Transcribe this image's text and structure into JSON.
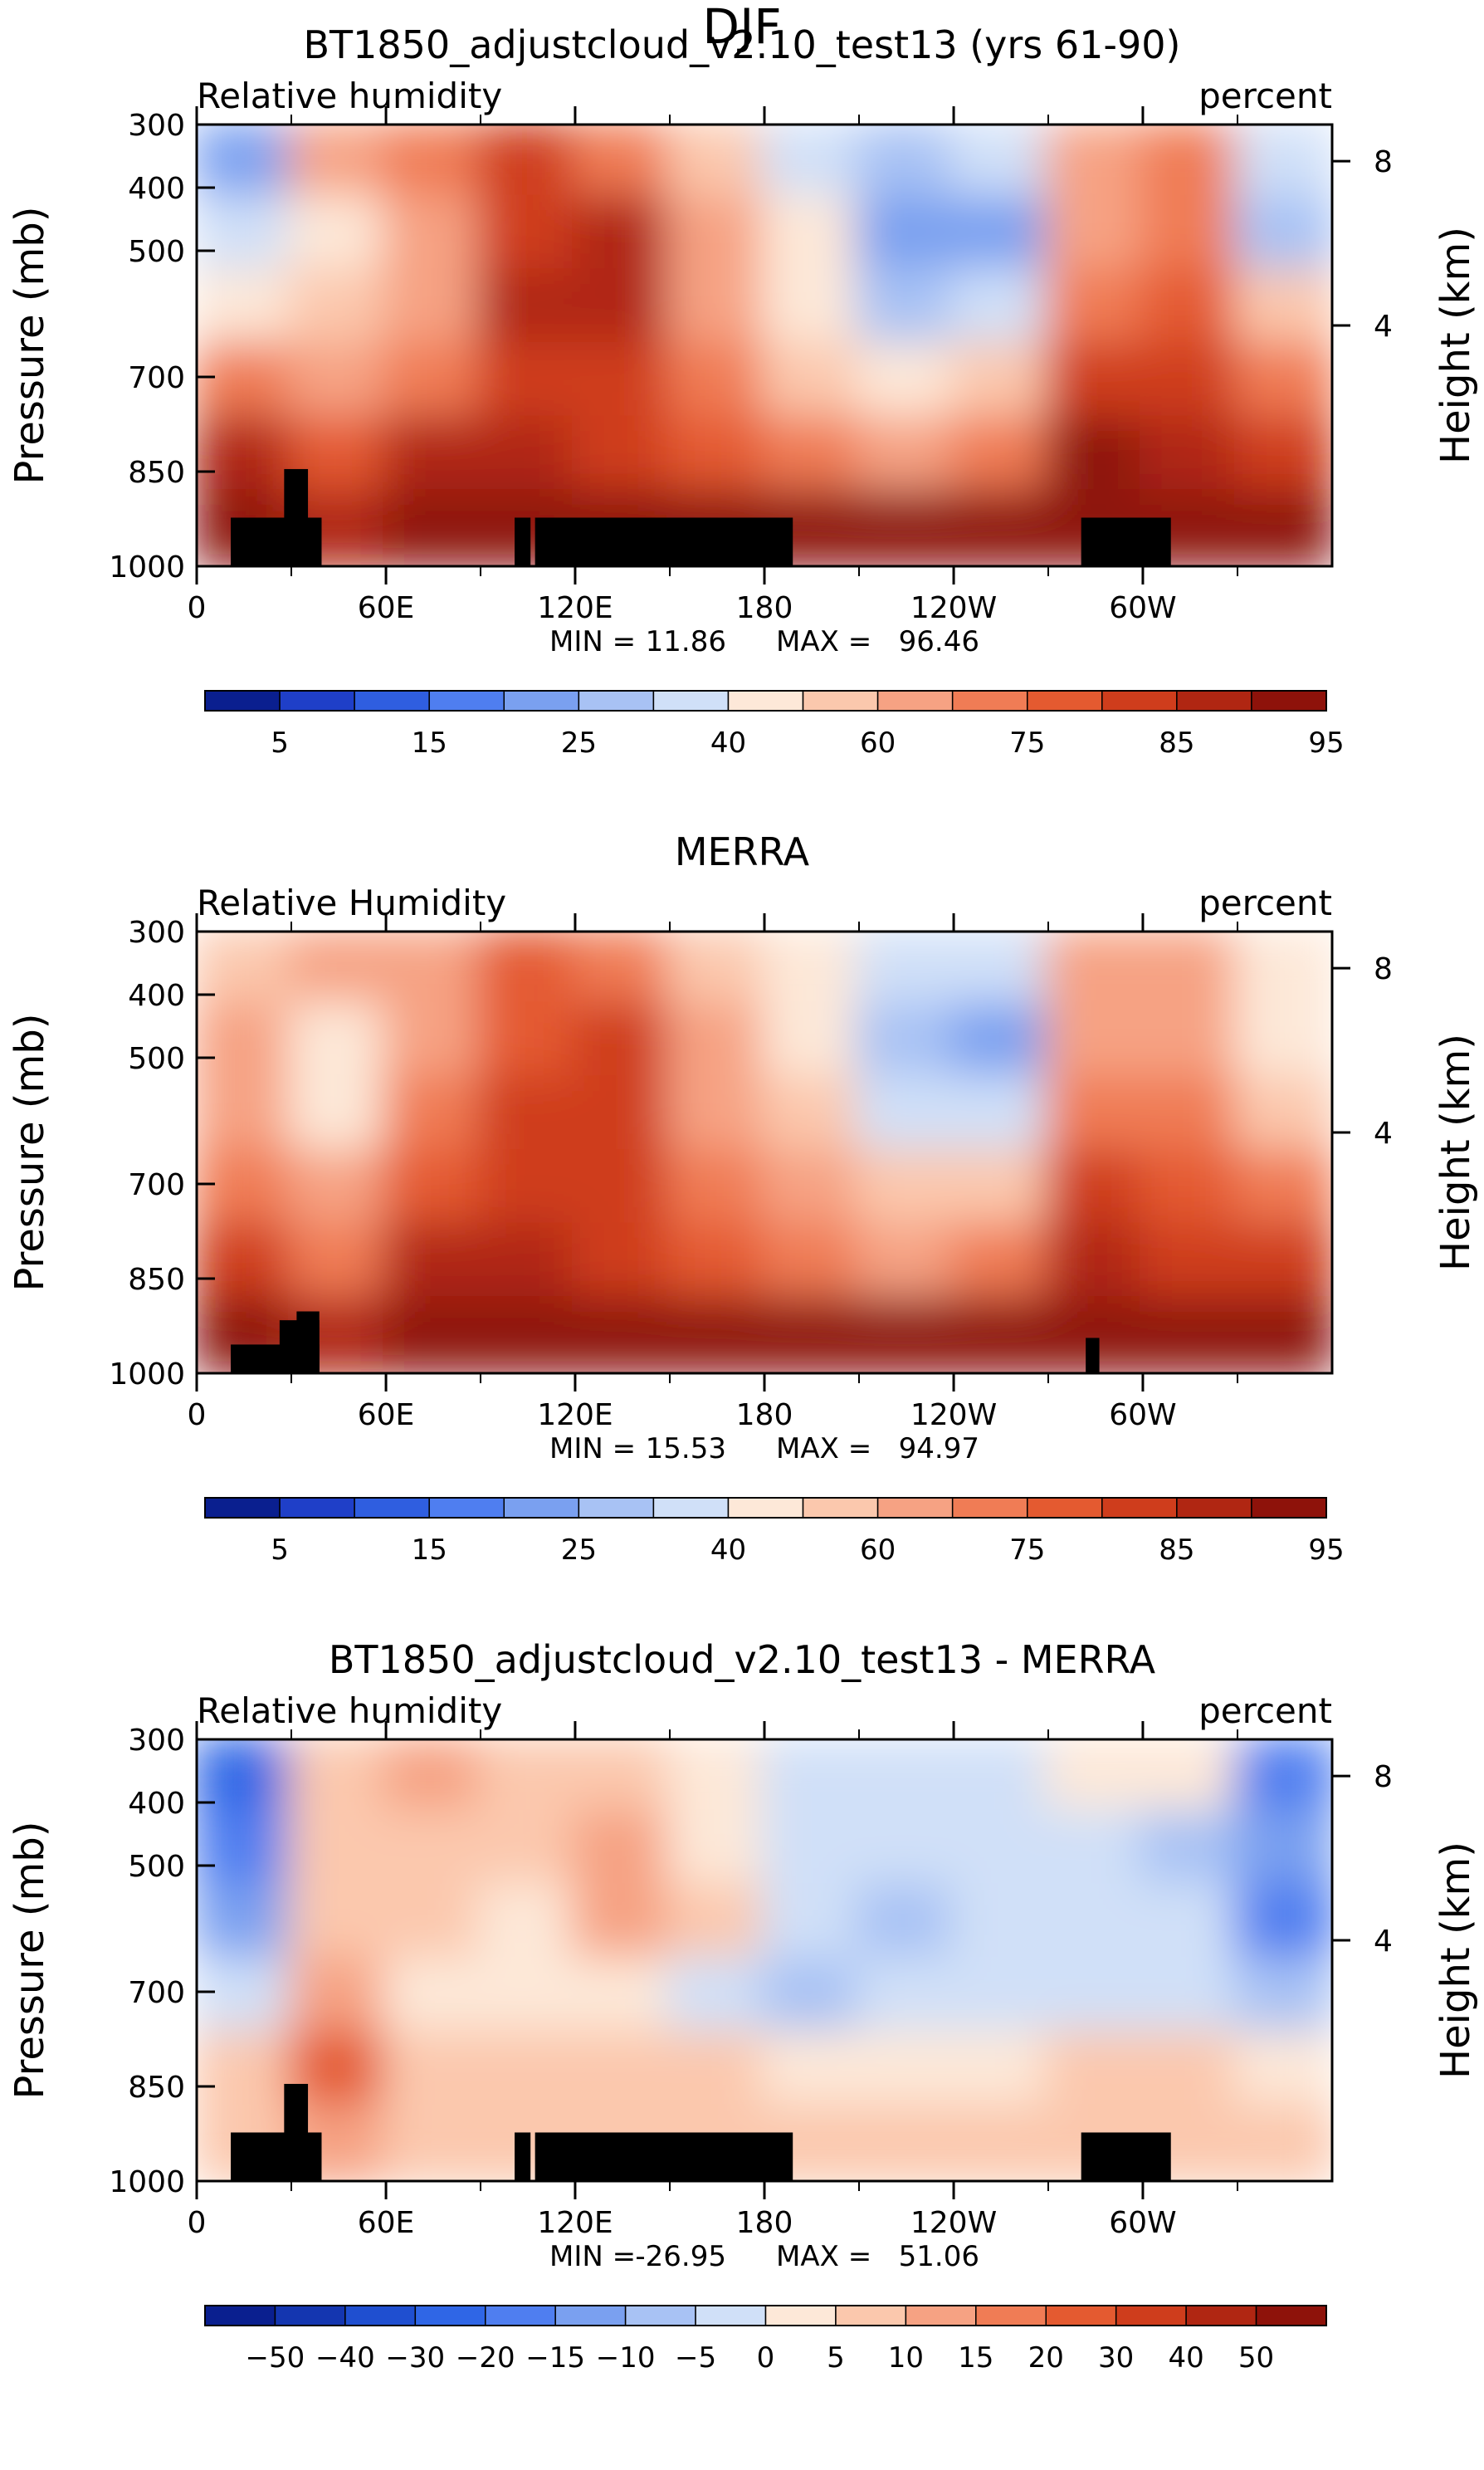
{
  "figure_title": "DJF",
  "chart_data": [
    {
      "type": "heatmap",
      "title": "BT1850_adjustcloud_v2.10_test13 (yrs 61-90)",
      "variable_label": "Relative humidity",
      "units_label": "percent",
      "ylabel": "Pressure (mb)",
      "y2label": "Height (km)",
      "yticks": [
        "300",
        "400",
        "500",
        "700",
        "850",
        "1000"
      ],
      "y2ticks": [
        "8",
        "4"
      ],
      "xticks": [
        "0",
        "60E",
        "120E",
        "180",
        "120W",
        "60W"
      ],
      "min_label": "MIN =",
      "min_value": "11.86",
      "max_label": "MAX =",
      "max_value": "96.46",
      "colorbar_labels": [
        "5",
        "15",
        "25",
        "40",
        "60",
        "75",
        "85",
        "95"
      ],
      "colorbar_colors": [
        "#0a1f8f",
        "#1f3fc8",
        "#2f5ee0",
        "#4f7ef0",
        "#7aa0f0",
        "#a8c2f4",
        "#d0e0f8",
        "#fde8d8",
        "#fbc8ad",
        "#f6a283",
        "#f07c55",
        "#e45a30",
        "#cf3d1c",
        "#b02612",
        "#8e120a"
      ],
      "x": [
        "0",
        "30E",
        "60E",
        "90E",
        "120E",
        "150E",
        "180",
        "150W",
        "120W",
        "90W",
        "60W",
        "30W"
      ],
      "y": [
        "300",
        "400",
        "500",
        "700",
        "850",
        "1000"
      ],
      "values": [
        [
          20,
          60,
          70,
          80,
          70,
          50,
          35,
          25,
          35,
          60,
          70,
          30
        ],
        [
          30,
          45,
          65,
          80,
          85,
          60,
          40,
          20,
          20,
          65,
          70,
          25
        ],
        [
          45,
          55,
          65,
          85,
          85,
          65,
          45,
          25,
          30,
          70,
          75,
          50
        ],
        [
          70,
          65,
          70,
          80,
          80,
          70,
          55,
          45,
          55,
          80,
          80,
          70
        ],
        [
          85,
          75,
          85,
          85,
          80,
          75,
          70,
          65,
          70,
          90,
          85,
          80
        ],
        [
          90,
          85,
          90,
          90,
          90,
          90,
          90,
          90,
          90,
          95,
          90,
          90
        ]
      ]
    },
    {
      "type": "heatmap",
      "title": "MERRA",
      "variable_label": "Relative Humidity",
      "units_label": "percent",
      "ylabel": "Pressure (mb)",
      "y2label": "Height (km)",
      "yticks": [
        "300",
        "400",
        "500",
        "700",
        "850",
        "1000"
      ],
      "y2ticks": [
        "8",
        "4"
      ],
      "xticks": [
        "0",
        "60E",
        "120E",
        "180",
        "120W",
        "60W"
      ],
      "min_label": "MIN =",
      "min_value": "15.53",
      "max_label": "MAX =",
      "max_value": "94.97",
      "colorbar_labels": [
        "5",
        "15",
        "25",
        "40",
        "60",
        "75",
        "85",
        "95"
      ],
      "colorbar_colors": [
        "#0a1f8f",
        "#1f3fc8",
        "#2f5ee0",
        "#4f7ef0",
        "#7aa0f0",
        "#a8c2f4",
        "#d0e0f8",
        "#fde8d8",
        "#fbc8ad",
        "#f6a283",
        "#f07c55",
        "#e45a30",
        "#cf3d1c",
        "#b02612",
        "#8e120a"
      ],
      "x": [
        "0",
        "30E",
        "60E",
        "90E",
        "120E",
        "150E",
        "180",
        "150W",
        "120W",
        "90W",
        "60W",
        "30W"
      ],
      "y": [
        "300",
        "400",
        "500",
        "700",
        "850",
        "1000"
      ],
      "values": [
        [
          55,
          60,
          65,
          75,
          70,
          55,
          40,
          30,
          35,
          60,
          60,
          45
        ],
        [
          60,
          40,
          60,
          75,
          80,
          60,
          45,
          25,
          20,
          60,
          65,
          40
        ],
        [
          65,
          45,
          70,
          80,
          80,
          65,
          50,
          30,
          30,
          70,
          70,
          55
        ],
        [
          70,
          60,
          75,
          80,
          80,
          70,
          60,
          50,
          55,
          80,
          75,
          70
        ],
        [
          80,
          70,
          85,
          85,
          80,
          75,
          70,
          65,
          70,
          85,
          80,
          80
        ],
        [
          90,
          85,
          90,
          90,
          90,
          90,
          90,
          90,
          90,
          90,
          90,
          90
        ]
      ]
    },
    {
      "type": "heatmap",
      "title": "BT1850_adjustcloud_v2.10_test13 - MERRA",
      "variable_label": "Relative humidity",
      "units_label": "percent",
      "ylabel": "Pressure (mb)",
      "y2label": "Height (km)",
      "yticks": [
        "300",
        "400",
        "500",
        "700",
        "850",
        "1000"
      ],
      "y2ticks": [
        "8",
        "4"
      ],
      "xticks": [
        "0",
        "60E",
        "120E",
        "180",
        "120W",
        "60W"
      ],
      "min_label": "MIN =",
      "min_value": "-26.95",
      "max_label": "MAX =",
      "max_value": "51.06",
      "colorbar_labels": [
        "−50",
        "−40",
        "−30",
        "−20",
        "−15",
        "−10",
        "−5",
        "0",
        "5",
        "10",
        "15",
        "20",
        "30",
        "40",
        "50"
      ],
      "colorbar_colors": [
        "#0a1f8f",
        "#1436b0",
        "#1f4fd0",
        "#2f66e6",
        "#4f7ef0",
        "#7aa0f0",
        "#a8c2f4",
        "#d0e0f8",
        "#fde8d8",
        "#fbc8ad",
        "#f6a283",
        "#f07c55",
        "#e45a30",
        "#cf3d1c",
        "#b02612",
        "#8e120a"
      ],
      "x": [
        "0",
        "30E",
        "60E",
        "90E",
        "120E",
        "150E",
        "180",
        "150W",
        "120W",
        "90W",
        "60W",
        "30W"
      ],
      "y": [
        "300",
        "400",
        "500",
        "700",
        "850",
        "1000"
      ],
      "values": [
        [
          -25,
          5,
          10,
          5,
          5,
          0,
          -5,
          -5,
          -5,
          0,
          0,
          -20
        ],
        [
          -20,
          5,
          5,
          5,
          10,
          0,
          -5,
          -5,
          -5,
          -5,
          -10,
          -15
        ],
        [
          -15,
          5,
          5,
          0,
          10,
          5,
          -5,
          -10,
          -5,
          -5,
          -5,
          -20
        ],
        [
          -5,
          10,
          0,
          0,
          0,
          -5,
          -10,
          -5,
          -5,
          -5,
          -5,
          -10
        ],
        [
          5,
          20,
          5,
          5,
          5,
          5,
          0,
          0,
          0,
          5,
          5,
          0
        ],
        [
          5,
          10,
          5,
          5,
          5,
          5,
          5,
          5,
          5,
          5,
          5,
          5
        ]
      ]
    }
  ]
}
